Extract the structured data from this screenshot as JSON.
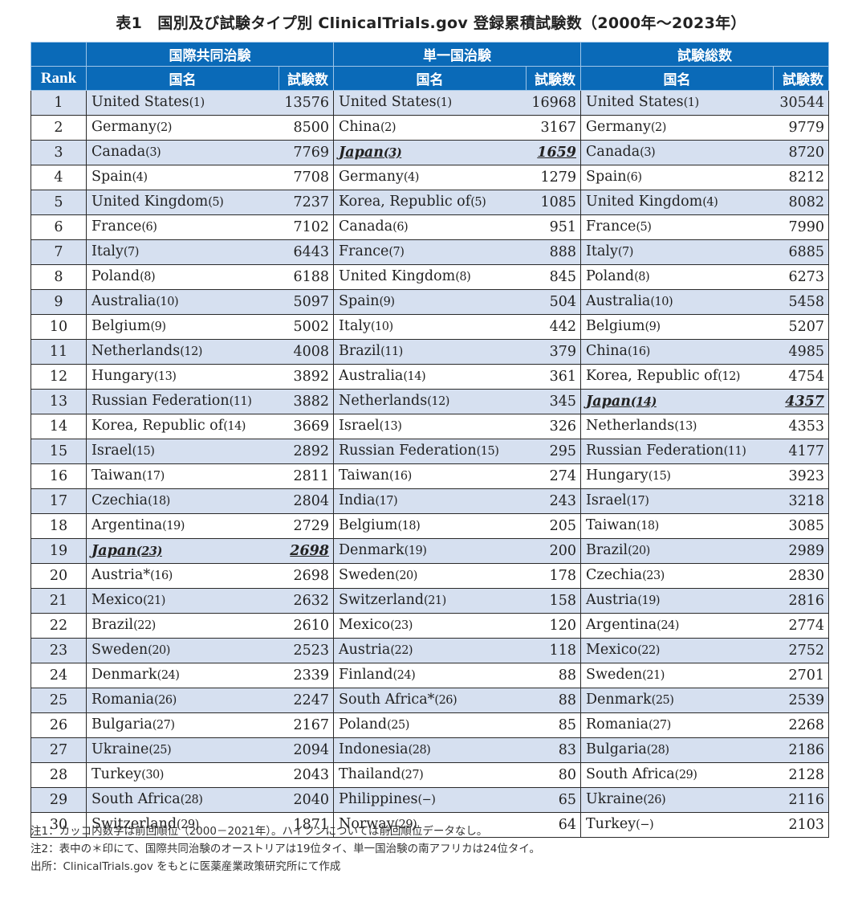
{
  "title": "表1　国別及び試験タイプ別 ClinicalTrials.gov 登録累積試験数（2000年〜2023年）",
  "header": {
    "groups": [
      "国際共同治験",
      "単一国治験",
      "試験総数"
    ],
    "rank": "Rank",
    "name": "国名",
    "count": "試験数"
  },
  "rows": [
    {
      "rank": "1",
      "a": [
        "United States",
        "(1)",
        "13576"
      ],
      "b": [
        "United States",
        "(1)",
        "16968"
      ],
      "c": [
        "United States",
        "(1)",
        "30544"
      ]
    },
    {
      "rank": "2",
      "a": [
        "Germany",
        "(2)",
        "8500"
      ],
      "b": [
        "China",
        "(2)",
        "3167"
      ],
      "c": [
        "Germany",
        "(2)",
        "9779"
      ]
    },
    {
      "rank": "3",
      "a": [
        "Canada",
        "(3)",
        "7769"
      ],
      "b": [
        "Japan",
        "(3)",
        "1659"
      ],
      "c": [
        "Canada",
        "(3)",
        "8720"
      ]
    },
    {
      "rank": "4",
      "a": [
        "Spain",
        "(4)",
        "7708"
      ],
      "b": [
        "Germany",
        "(4)",
        "1279"
      ],
      "c": [
        "Spain",
        "(6)",
        "8212"
      ]
    },
    {
      "rank": "5",
      "a": [
        "United Kingdom",
        "(5)",
        "7237"
      ],
      "b": [
        "Korea, Republic of",
        "(5)",
        "1085"
      ],
      "c": [
        "United Kingdom",
        "(4)",
        "8082"
      ]
    },
    {
      "rank": "6",
      "a": [
        "France",
        "(6)",
        "7102"
      ],
      "b": [
        "Canada",
        "(6)",
        "951"
      ],
      "c": [
        "France",
        "(5)",
        "7990"
      ]
    },
    {
      "rank": "7",
      "a": [
        "Italy",
        "(7)",
        "6443"
      ],
      "b": [
        "France",
        "(7)",
        "888"
      ],
      "c": [
        "Italy",
        "(7)",
        "6885"
      ]
    },
    {
      "rank": "8",
      "a": [
        "Poland",
        "(8)",
        "6188"
      ],
      "b": [
        "United Kingdom",
        "(8)",
        "845"
      ],
      "c": [
        "Poland",
        "(8)",
        "6273"
      ]
    },
    {
      "rank": "9",
      "a": [
        "Australia",
        "(10)",
        "5097"
      ],
      "b": [
        "Spain",
        "(9)",
        "504"
      ],
      "c": [
        "Australia",
        "(10)",
        "5458"
      ]
    },
    {
      "rank": "10",
      "a": [
        "Belgium",
        "(9)",
        "5002"
      ],
      "b": [
        "Italy",
        "(10)",
        "442"
      ],
      "c": [
        "Belgium",
        "(9)",
        "5207"
      ]
    },
    {
      "rank": "11",
      "a": [
        "Netherlands",
        "(12)",
        "4008"
      ],
      "b": [
        "Brazil",
        "(11)",
        "379"
      ],
      "c": [
        "China",
        "(16)",
        "4985"
      ]
    },
    {
      "rank": "12",
      "a": [
        "Hungary",
        "(13)",
        "3892"
      ],
      "b": [
        "Australia",
        "(14)",
        "361"
      ],
      "c": [
        "Korea, Republic of",
        "(12)",
        "4754"
      ]
    },
    {
      "rank": "13",
      "a": [
        "Russian Federation",
        "(11)",
        "3882"
      ],
      "b": [
        "Netherlands",
        "(12)",
        "345"
      ],
      "c": [
        "Japan",
        "(14)",
        "4357"
      ]
    },
    {
      "rank": "14",
      "a": [
        "Korea, Republic of",
        "(14)",
        "3669"
      ],
      "b": [
        "Israel",
        "(13)",
        "326"
      ],
      "c": [
        "Netherlands",
        "(13)",
        "4353"
      ]
    },
    {
      "rank": "15",
      "a": [
        "Israel",
        "(15)",
        "2892"
      ],
      "b": [
        "Russian Federation",
        "(15)",
        "295"
      ],
      "c": [
        "Russian Federation",
        "(11)",
        "4177"
      ]
    },
    {
      "rank": "16",
      "a": [
        "Taiwan",
        "(17)",
        "2811"
      ],
      "b": [
        "Taiwan",
        "(16)",
        "274"
      ],
      "c": [
        "Hungary",
        "(15)",
        "3923"
      ]
    },
    {
      "rank": "17",
      "a": [
        "Czechia",
        "(18)",
        "2804"
      ],
      "b": [
        "India",
        "(17)",
        "243"
      ],
      "c": [
        "Israel",
        "(17)",
        "3218"
      ]
    },
    {
      "rank": "18",
      "a": [
        "Argentina",
        "(19)",
        "2729"
      ],
      "b": [
        "Belgium",
        "(18)",
        "205"
      ],
      "c": [
        "Taiwan",
        "(18)",
        "3085"
      ]
    },
    {
      "rank": "19",
      "a": [
        "Japan",
        "(23)",
        "2698"
      ],
      "b": [
        "Denmark",
        "(19)",
        "200"
      ],
      "c": [
        "Brazil",
        "(20)",
        "2989"
      ]
    },
    {
      "rank": "20",
      "a": [
        "Austria*",
        "(16)",
        "2698"
      ],
      "b": [
        "Sweden",
        "(20)",
        "178"
      ],
      "c": [
        "Czechia",
        "(23)",
        "2830"
      ]
    },
    {
      "rank": "21",
      "a": [
        "Mexico",
        "(21)",
        "2632"
      ],
      "b": [
        "Switzerland",
        "(21)",
        "158"
      ],
      "c": [
        "Austria",
        "(19)",
        "2816"
      ]
    },
    {
      "rank": "22",
      "a": [
        "Brazil",
        "(22)",
        "2610"
      ],
      "b": [
        "Mexico",
        "(23)",
        "120"
      ],
      "c": [
        "Argentina",
        "(24)",
        "2774"
      ]
    },
    {
      "rank": "23",
      "a": [
        "Sweden",
        "(20)",
        "2523"
      ],
      "b": [
        "Austria",
        "(22)",
        "118"
      ],
      "c": [
        "Mexico",
        "(22)",
        "2752"
      ]
    },
    {
      "rank": "24",
      "a": [
        "Denmark",
        "(24)",
        "2339"
      ],
      "b": [
        "Finland",
        "(24)",
        "88"
      ],
      "c": [
        "Sweden",
        "(21)",
        "2701"
      ]
    },
    {
      "rank": "25",
      "a": [
        "Romania",
        "(26)",
        "2247"
      ],
      "b": [
        "South Africa*",
        "(26)",
        "88"
      ],
      "c": [
        "Denmark",
        "(25)",
        "2539"
      ]
    },
    {
      "rank": "26",
      "a": [
        "Bulgaria",
        "(27)",
        "2167"
      ],
      "b": [
        "Poland",
        "(25)",
        "85"
      ],
      "c": [
        "Romania",
        "(27)",
        "2268"
      ]
    },
    {
      "rank": "27",
      "a": [
        "Ukraine",
        "(25)",
        "2094"
      ],
      "b": [
        "Indonesia",
        "(28)",
        "83"
      ],
      "c": [
        "Bulgaria",
        "(28)",
        "2186"
      ]
    },
    {
      "rank": "28",
      "a": [
        "Turkey",
        "(30)",
        "2043"
      ],
      "b": [
        "Thailand",
        "(27)",
        "80"
      ],
      "c": [
        "South Africa",
        "(29)",
        "2128"
      ]
    },
    {
      "rank": "29",
      "a": [
        "South Africa",
        "(28)",
        "2040"
      ],
      "b": [
        "Philippines",
        "(−)",
        "65"
      ],
      "c": [
        "Ukraine",
        "(26)",
        "2116"
      ]
    },
    {
      "rank": "30",
      "a": [
        "Switzerland",
        "(29)",
        "1871"
      ],
      "b": [
        "Norway",
        "(29)",
        "64"
      ],
      "c": [
        "Turkey",
        "(−)",
        "2103"
      ]
    }
  ],
  "notes": [
    "注1：カッコ内数字は前回順位（2000－2021年）。ハイフンについては前回順位データなし。",
    "注2：表中の＊印にて、国際共同治験のオーストリアは19位タイ、単一国治験の南アフリカは24位タイ。",
    "出所：ClinicalTrials.gov をもとに医薬産業政策研究所にて作成"
  ],
  "colors": {
    "header_bg": "#0a6ab8",
    "header_text": "#ffffff",
    "row_odd": "#d6e0f0",
    "row_even": "#ffffff"
  },
  "highlight": "Japan"
}
